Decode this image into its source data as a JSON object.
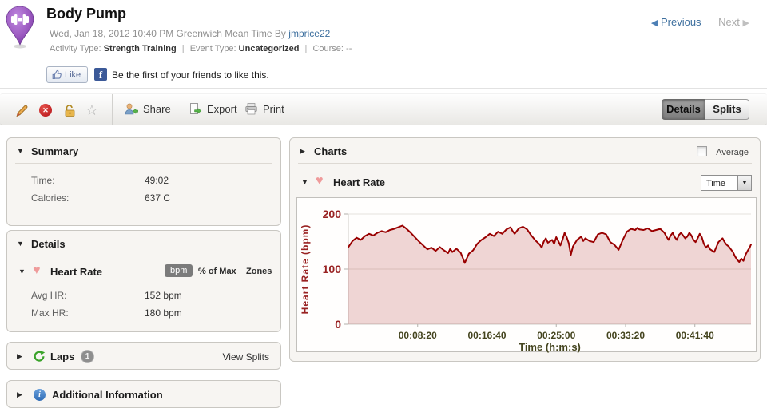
{
  "header": {
    "title": "Body Pump",
    "timestamp": "Wed, Jan 18, 2012 10:40 PM Greenwich Mean Time By",
    "user": "jmprice22",
    "activity_type_label": "Activity Type:",
    "activity_type": "Strength Training",
    "sep1": "|",
    "event_type_label": "Event Type:",
    "event_type": "Uncategorized",
    "sep2": "|",
    "course_label": "Course:",
    "course_value": "--",
    "previous": "Previous",
    "next": "Next",
    "like": "Like",
    "facebook_text": "Be the first of your friends to like this."
  },
  "toolbar": {
    "share": "Share",
    "export": "Export",
    "print": "Print",
    "details_tab": "Details",
    "splits_tab": "Splits"
  },
  "summary": {
    "title": "Summary",
    "rows": [
      {
        "label": "Time:",
        "value": "49:02"
      },
      {
        "label": "Calories:",
        "value": "637 C"
      }
    ]
  },
  "details": {
    "title": "Details",
    "heart_rate": {
      "title": "Heart Rate",
      "units": [
        "bpm",
        "% of Max",
        "Zones"
      ],
      "selected_unit": "bpm",
      "rows": [
        {
          "label": "Avg HR:",
          "value": "152 bpm"
        },
        {
          "label": "Max HR:",
          "value": "180 bpm"
        }
      ]
    }
  },
  "laps": {
    "title": "Laps",
    "count": "1",
    "view_splits": "View Splits"
  },
  "additional": {
    "title": "Additional Information"
  },
  "charts_panel": {
    "title": "Charts",
    "average": "Average",
    "chart_title": "Heart Rate",
    "x_unit_selected": "Time"
  },
  "colors": {
    "link": "#3d6f9e",
    "pin_purple": "#8e44ad",
    "chart_line": "#990000",
    "chart_fill": "rgba(153,0,0,0.16)",
    "y_axis_text": "#992222",
    "x_axis_text": "#44441e"
  },
  "chart_data": {
    "type": "area",
    "title": "Heart Rate",
    "xlabel": "Time (h:m:s)",
    "ylabel": "Heart Rate (bpm)",
    "ylim": [
      0,
      200
    ],
    "yticks": [
      0,
      100,
      200
    ],
    "xtick_labels": [
      "00:08:20",
      "00:16:40",
      "00:25:00",
      "00:33:20",
      "00:41:40"
    ],
    "xtick_seconds": [
      500,
      1000,
      1500,
      2000,
      2500
    ],
    "x_range_seconds": [
      0,
      2905
    ],
    "grid": true,
    "legend": "none",
    "line_color": "#990000",
    "fill_color": "rgba(153,0,0,0.16)",
    "axis_color": "#992222",
    "xaxis_color": "#44441e",
    "series": [
      {
        "name": "Heart Rate (bpm)",
        "points": [
          [
            0,
            140
          ],
          [
            30,
            151
          ],
          [
            60,
            157
          ],
          [
            90,
            153
          ],
          [
            120,
            160
          ],
          [
            150,
            164
          ],
          [
            180,
            161
          ],
          [
            210,
            166
          ],
          [
            240,
            169
          ],
          [
            270,
            167
          ],
          [
            300,
            171
          ],
          [
            330,
            173
          ],
          [
            360,
            176
          ],
          [
            390,
            179
          ],
          [
            420,
            173
          ],
          [
            450,
            166
          ],
          [
            480,
            158
          ],
          [
            510,
            150
          ],
          [
            540,
            143
          ],
          [
            570,
            136
          ],
          [
            600,
            139
          ],
          [
            630,
            133
          ],
          [
            660,
            140
          ],
          [
            690,
            134
          ],
          [
            720,
            129
          ],
          [
            735,
            137
          ],
          [
            750,
            131
          ],
          [
            780,
            137
          ],
          [
            810,
            130
          ],
          [
            825,
            121
          ],
          [
            840,
            111
          ],
          [
            870,
            128
          ],
          [
            900,
            134
          ],
          [
            930,
            146
          ],
          [
            960,
            153
          ],
          [
            990,
            158
          ],
          [
            1020,
            164
          ],
          [
            1050,
            160
          ],
          [
            1080,
            168
          ],
          [
            1110,
            164
          ],
          [
            1140,
            172
          ],
          [
            1170,
            176
          ],
          [
            1185,
            169
          ],
          [
            1200,
            164
          ],
          [
            1230,
            174
          ],
          [
            1260,
            177
          ],
          [
            1290,
            172
          ],
          [
            1320,
            161
          ],
          [
            1350,
            152
          ],
          [
            1380,
            145
          ],
          [
            1395,
            139
          ],
          [
            1410,
            150
          ],
          [
            1425,
            156
          ],
          [
            1440,
            148
          ],
          [
            1470,
            153
          ],
          [
            1485,
            146
          ],
          [
            1500,
            158
          ],
          [
            1515,
            151
          ],
          [
            1530,
            143
          ],
          [
            1545,
            153
          ],
          [
            1560,
            166
          ],
          [
            1575,
            158
          ],
          [
            1590,
            147
          ],
          [
            1605,
            126
          ],
          [
            1620,
            141
          ],
          [
            1650,
            153
          ],
          [
            1680,
            159
          ],
          [
            1695,
            151
          ],
          [
            1710,
            156
          ],
          [
            1740,
            151
          ],
          [
            1770,
            149
          ],
          [
            1800,
            163
          ],
          [
            1830,
            166
          ],
          [
            1860,
            163
          ],
          [
            1875,
            156
          ],
          [
            1890,
            149
          ],
          [
            1920,
            144
          ],
          [
            1950,
            135
          ],
          [
            1980,
            153
          ],
          [
            2010,
            168
          ],
          [
            2040,
            173
          ],
          [
            2070,
            171
          ],
          [
            2085,
            175
          ],
          [
            2100,
            172
          ],
          [
            2130,
            171
          ],
          [
            2160,
            174
          ],
          [
            2190,
            169
          ],
          [
            2220,
            171
          ],
          [
            2250,
            173
          ],
          [
            2280,
            166
          ],
          [
            2295,
            159
          ],
          [
            2310,
            153
          ],
          [
            2325,
            161
          ],
          [
            2340,
            166
          ],
          [
            2355,
            158
          ],
          [
            2370,
            153
          ],
          [
            2385,
            162
          ],
          [
            2400,
            166
          ],
          [
            2415,
            161
          ],
          [
            2430,
            156
          ],
          [
            2445,
            159
          ],
          [
            2460,
            166
          ],
          [
            2475,
            161
          ],
          [
            2490,
            153
          ],
          [
            2505,
            149
          ],
          [
            2520,
            156
          ],
          [
            2535,
            164
          ],
          [
            2550,
            158
          ],
          [
            2565,
            146
          ],
          [
            2580,
            139
          ],
          [
            2595,
            143
          ],
          [
            2610,
            136
          ],
          [
            2640,
            131
          ],
          [
            2670,
            149
          ],
          [
            2700,
            156
          ],
          [
            2715,
            149
          ],
          [
            2730,
            144
          ],
          [
            2745,
            141
          ],
          [
            2760,
            136
          ],
          [
            2775,
            131
          ],
          [
            2790,
            123
          ],
          [
            2805,
            117
          ],
          [
            2820,
            113
          ],
          [
            2835,
            119
          ],
          [
            2850,
            115
          ],
          [
            2865,
            126
          ],
          [
            2880,
            133
          ],
          [
            2895,
            139
          ],
          [
            2905,
            145
          ]
        ]
      }
    ]
  }
}
